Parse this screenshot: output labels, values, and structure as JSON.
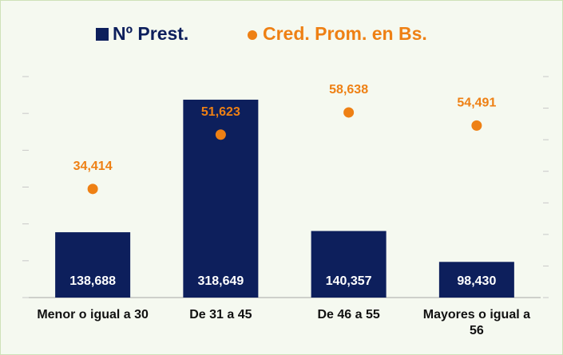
{
  "chart_data": {
    "type": "bar",
    "categories": [
      "Menor o igual a 30",
      "De 31 a 45",
      "De 46 a 55",
      "Mayores o igual a 56"
    ],
    "series": [
      {
        "name": "Nº Prest.",
        "type": "bar",
        "color": "#0d1f5c",
        "values": [
          138688,
          318649,
          140357,
          98430
        ],
        "value_labels": [
          "138,688",
          "318,649",
          "140,357",
          "98,430"
        ]
      },
      {
        "name": "Cred. Prom. en Bs.",
        "type": "scatter",
        "axis": "y2",
        "color": "#ee8014",
        "values": [
          34414,
          51623,
          58638,
          54491
        ],
        "value_labels": [
          "34,414",
          "51,623",
          "58,638",
          "54,491"
        ]
      }
    ],
    "ylim": [
      50000,
      350000
    ],
    "yticks": [
      50000,
      100000,
      150000,
      200000,
      250000,
      300000,
      350000
    ],
    "y2lim": [
      0,
      70000
    ],
    "y2ticks": [
      0,
      10000,
      20000,
      30000,
      40000,
      50000,
      60000,
      70000
    ],
    "legend": "top"
  }
}
